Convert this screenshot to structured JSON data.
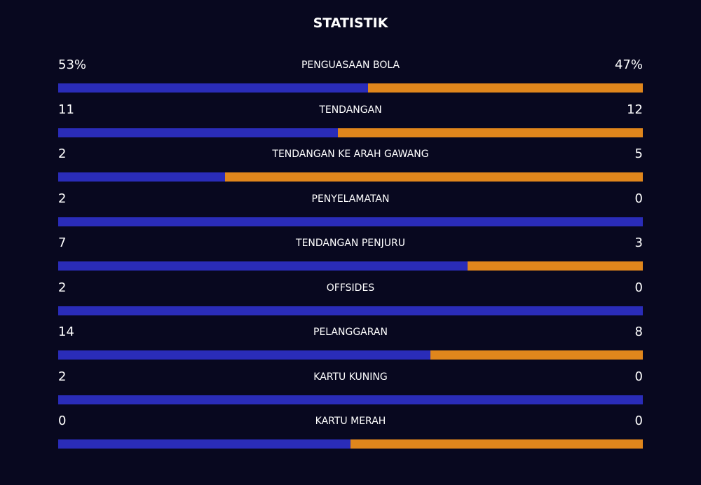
{
  "title": "STATISTIK",
  "colors": {
    "home": "#2a2cb8",
    "away": "#e0861c"
  },
  "stats": [
    {
      "label": "PENGUASAAN BOLA",
      "home": {
        "value": 53,
        "label": "53%"
      },
      "away": {
        "value": 47,
        "label": "47%"
      }
    },
    {
      "label": "TENDANGAN",
      "home": 11,
      "away": 12
    },
    {
      "label": "TENDANGAN KE ARAH GAWANG",
      "home": 2,
      "away": 5
    },
    {
      "label": "PENYELAMATAN",
      "home": 2,
      "away": 0
    },
    {
      "label": "TENDANGAN PENJURU",
      "home": 7,
      "away": 3
    },
    {
      "label": "OFFSIDES",
      "home": 2,
      "away": 0
    },
    {
      "label": "PELANGGARAN",
      "home": 14,
      "away": 8
    },
    {
      "label": "KARTU KUNING",
      "home": 2,
      "away": 0
    },
    {
      "label": "KARTU MERAH",
      "home": 0,
      "away": 0
    }
  ]
}
